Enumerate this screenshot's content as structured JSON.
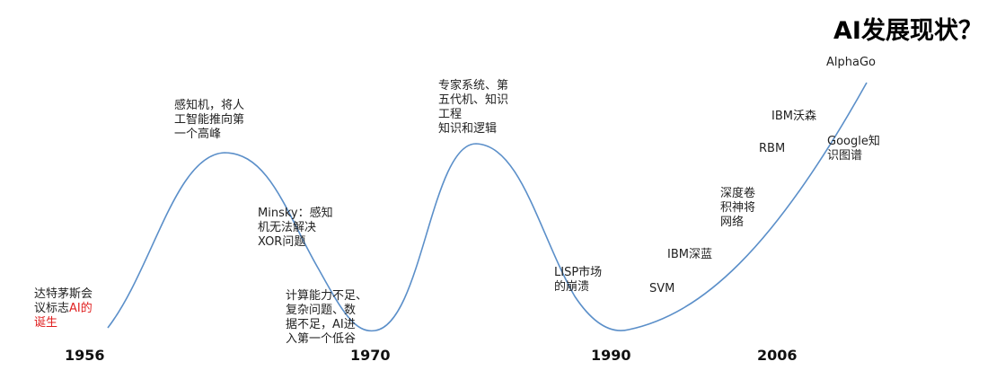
{
  "title": "AI发展现状？",
  "colors": {
    "curve": "#5b8fc9",
    "highlight": "#e02020"
  },
  "annotations": {
    "dartmouth_part1": "达特茅斯会\n议标志",
    "dartmouth_ai": "AI的",
    "dartmouth_part2": "诞生",
    "perceptron": "感知机，将人\n工智能推向第\n一个高峰",
    "minsky": "Minsky：感知\n机无法解决\nXOR问题",
    "compute": "计算能力不足、\n复杂问题、数\n据不足，AI进\n入第一个低谷",
    "expert": "专家系统、第\n五代机、知识\n工程\n知识和逻辑",
    "lisp": "LISP市场\n的崩溃",
    "svm": "SVM",
    "deepblue": "IBM深蓝",
    "dcnn": "深度卷\n积神将\n网络",
    "rbm": "RBM",
    "watson": "IBM沃森",
    "google": "Google知\n识图谱",
    "alphago": "AlphaGo"
  },
  "years": [
    "1956",
    "1970",
    "1990",
    "2006"
  ]
}
